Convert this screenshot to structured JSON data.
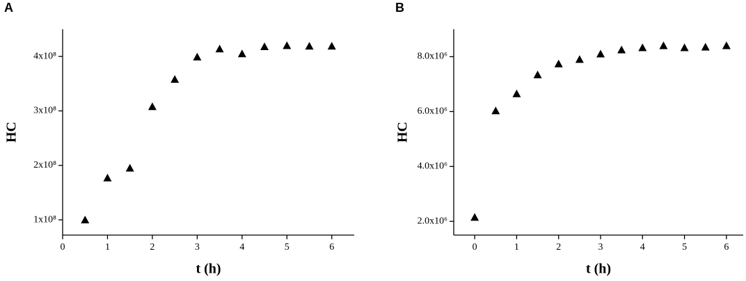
{
  "chart_data": [
    {
      "type": "scatter",
      "title": "A",
      "x_label": "t (h)",
      "y_label": "HC",
      "color": "#000000",
      "x": [
        0.5,
        1,
        1.5,
        2,
        2.5,
        3,
        3.5,
        4,
        4.5,
        5,
        5.5,
        6
      ],
      "values": [
        100000000,
        177000000,
        195000000,
        308000000,
        358000000,
        399000000,
        414000000,
        405000000,
        418000000,
        420000000,
        419000000,
        419000000
      ],
      "xlim": [
        0,
        6.5
      ],
      "xticks": [
        0,
        1,
        2,
        3,
        4,
        5,
        6
      ],
      "ylim": [
        72000000,
        450000000
      ],
      "yticks": [
        {
          "value": 100000000,
          "label": "1x10⁸"
        },
        {
          "value": 200000000,
          "label": "2x10⁸"
        },
        {
          "value": 300000000,
          "label": "3x10⁸"
        },
        {
          "value": 400000000,
          "label": "4x10⁸"
        }
      ]
    },
    {
      "type": "scatter",
      "title": "B",
      "x_label": "t (h)",
      "y_label": "HC",
      "color": "#000000",
      "x": [
        0,
        0.5,
        1,
        1.5,
        2,
        2.5,
        3,
        3.5,
        4,
        4.5,
        5,
        5.5,
        6
      ],
      "values": [
        2150000,
        6030000,
        6650000,
        7340000,
        7740000,
        7900000,
        8100000,
        8250000,
        8330000,
        8400000,
        8330000,
        8350000,
        8400000
      ],
      "xlim": [
        -0.5,
        6.4
      ],
      "xticks": [
        0,
        1,
        2,
        3,
        4,
        5,
        6
      ],
      "ylim": [
        1500000,
        9000000
      ],
      "yticks": [
        {
          "value": 2000000,
          "label": "2.0x10⁶"
        },
        {
          "value": 4000000,
          "label": "4.0x10⁶"
        },
        {
          "value": 6000000,
          "label": "6.0x10⁶"
        },
        {
          "value": 8000000,
          "label": "8.0x10⁶"
        }
      ]
    }
  ]
}
